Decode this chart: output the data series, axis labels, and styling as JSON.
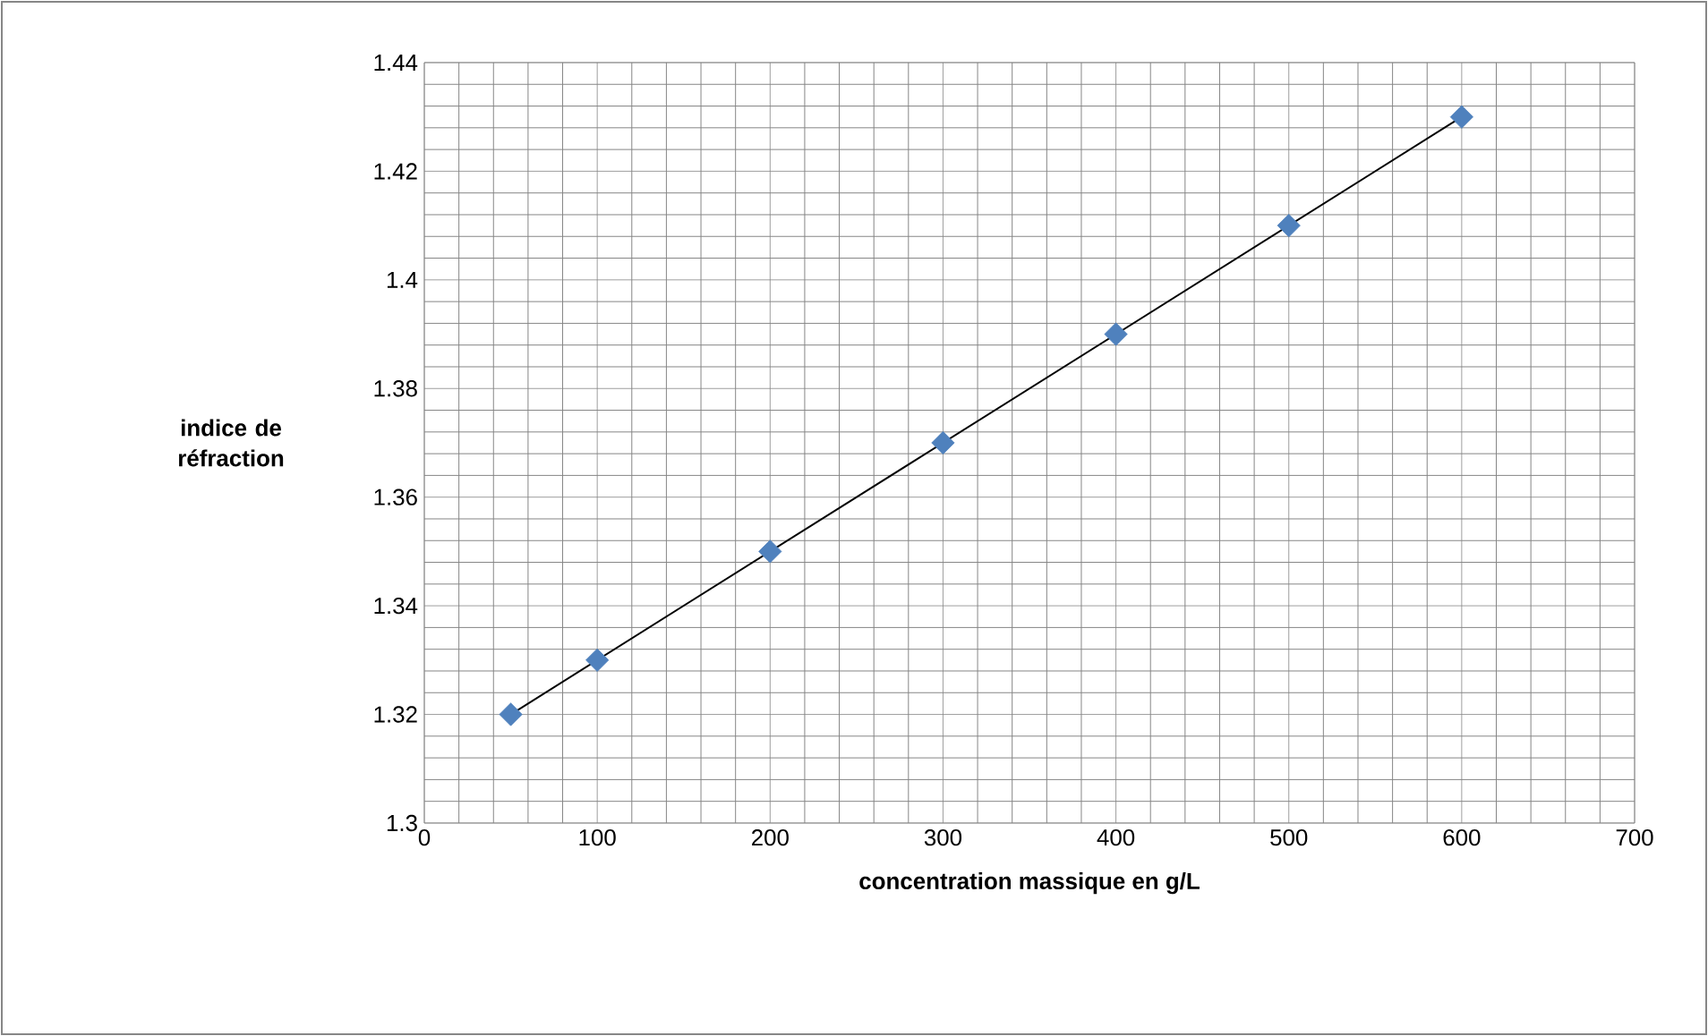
{
  "chart_data": {
    "type": "scatter",
    "xlabel": "concentration massique en g/L",
    "ylabel": "indice de réfraction",
    "xlim": [
      0,
      700
    ],
    "ylim": [
      1.3,
      1.44
    ],
    "xticks": [
      0,
      100,
      200,
      300,
      400,
      500,
      600,
      700
    ],
    "yticks": [
      1.3,
      1.32,
      1.34,
      1.36,
      1.38,
      1.4,
      1.42,
      1.44
    ],
    "grid": true,
    "series": [
      {
        "type": "line",
        "color": "#000000",
        "x": [
          50,
          600
        ],
        "values": [
          1.32,
          1.43
        ],
        "marker": "none"
      },
      {
        "color": "#4f81bd",
        "marker": "diamond",
        "x": [
          50,
          100,
          200,
          300,
          400,
          500,
          600
        ],
        "values": [
          1.32,
          1.33,
          1.35,
          1.37,
          1.39,
          1.41,
          1.43
        ]
      }
    ]
  }
}
